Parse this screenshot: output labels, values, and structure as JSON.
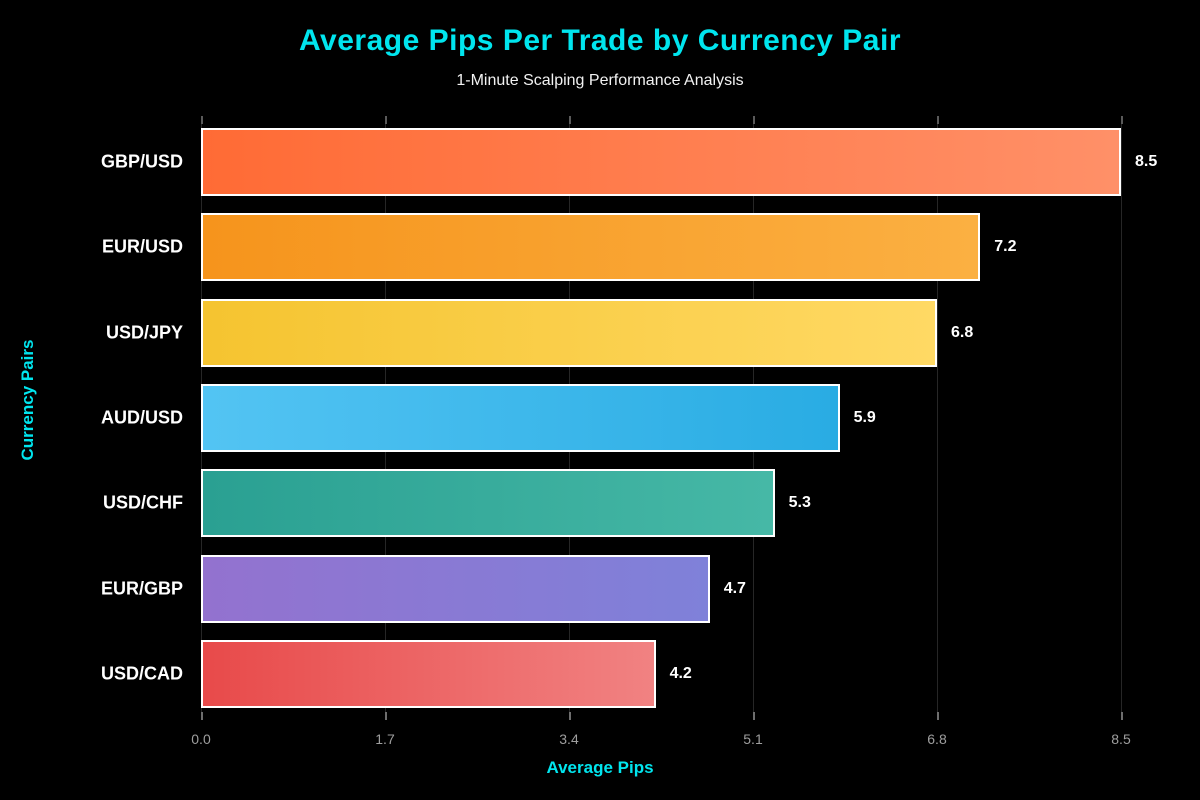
{
  "header": {
    "title": "Average Pips Per Trade by Currency Pair",
    "subtitle": "1-Minute Scalping Performance Analysis"
  },
  "colors": {
    "background": "#000000",
    "accent_cyan": "#00E5EE",
    "subtitle_text": "#F2F2F2",
    "category_label": "#FFFFFF",
    "value_label": "#FFFFFF",
    "tick_label": "#9E9E9E",
    "gridline": "#262626",
    "bar_border": "#FFFFFF"
  },
  "chart_data": {
    "type": "bar",
    "orientation": "horizontal",
    "title": "Average Pips Per Trade by Currency Pair",
    "subtitle": "1-Minute Scalping Performance Analysis",
    "xlabel": "Average Pips",
    "ylabel": "Currency Pairs",
    "categories": [
      "GBP/USD",
      "EUR/USD",
      "USD/JPY",
      "AUD/USD",
      "USD/CHF",
      "EUR/GBP",
      "USD/CAD"
    ],
    "values": [
      8.5,
      7.2,
      6.8,
      5.9,
      5.3,
      4.7,
      4.2
    ],
    "value_labels": [
      "8.5",
      "7.2",
      "6.8",
      "5.9",
      "5.3",
      "4.7",
      "4.2"
    ],
    "xlim": [
      0,
      8.5
    ],
    "xticks": [
      "0.0",
      "1.7",
      "3.4",
      "5.1",
      "6.8",
      "8.5"
    ],
    "xtick_values": [
      0,
      1.7,
      3.4,
      5.1,
      6.8,
      8.5
    ],
    "grid": "vertical",
    "legend": "none",
    "bar_gradients": [
      {
        "from": "#FF6B35",
        "to": "#FF9068"
      },
      {
        "from": "#F6941C",
        "to": "#FBB042"
      },
      {
        "from": "#F5C430",
        "to": "#FFD964"
      },
      {
        "from": "#53C4F3",
        "to": "#29ACE3"
      },
      {
        "from": "#2AA092",
        "to": "#46B8A6"
      },
      {
        "from": "#9372CF",
        "to": "#7F81D9"
      },
      {
        "from": "#E84A4A",
        "to": "#F18282"
      }
    ]
  }
}
